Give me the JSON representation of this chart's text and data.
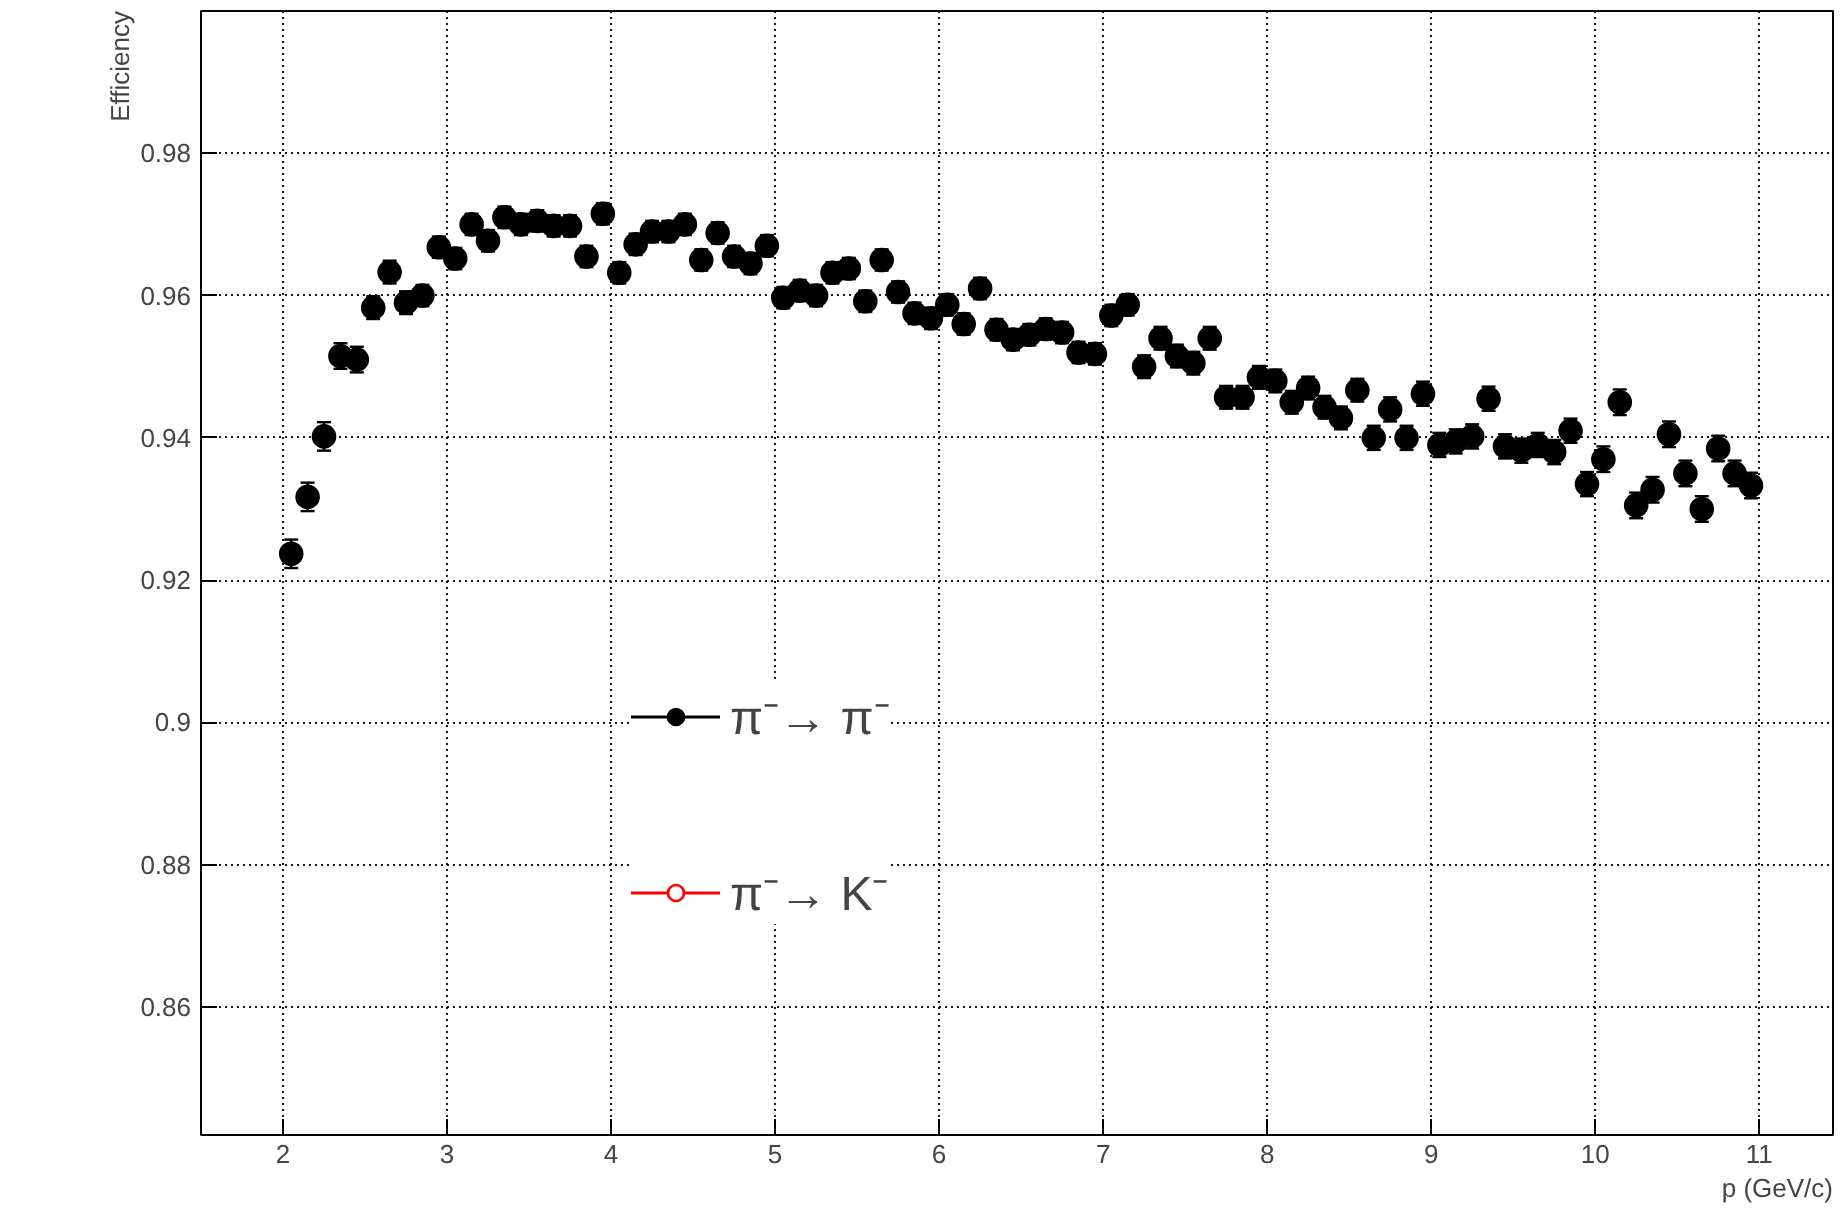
{
  "chart_data": {
    "type": "scatter",
    "xlabel": "p (GeV/c)",
    "ylabel": "Efficiency",
    "x": [
      2.05,
      2.15,
      2.25,
      2.35,
      2.45,
      2.55,
      2.65,
      2.75,
      2.85,
      2.95,
      3.05,
      3.15,
      3.25,
      3.35,
      3.45,
      3.55,
      3.65,
      3.75,
      3.85,
      3.95,
      4.05,
      4.15,
      4.25,
      4.35,
      4.45,
      4.55,
      4.65,
      4.75,
      4.85,
      4.95,
      5.05,
      5.15,
      5.25,
      5.35,
      5.45,
      5.55,
      5.65,
      5.75,
      5.85,
      5.95,
      6.05,
      6.15,
      6.25,
      6.35,
      6.45,
      6.55,
      6.65,
      6.75,
      6.85,
      6.95,
      7.05,
      7.15,
      7.25,
      7.35,
      7.45,
      7.55,
      7.65,
      7.75,
      7.85,
      7.95,
      8.05,
      8.15,
      8.25,
      8.35,
      8.45,
      8.55,
      8.65,
      8.75,
      8.85,
      8.95,
      9.05,
      9.15,
      9.25,
      9.35,
      9.45,
      9.55,
      9.65,
      9.75,
      9.85,
      9.95,
      10.05,
      10.15,
      10.25,
      10.35,
      10.45,
      10.55,
      10.65,
      10.75,
      10.85,
      10.95
    ],
    "series": [
      {
        "name": "π⁻→ π⁻",
        "color": "#000000",
        "marker": "circle",
        "values": [
          0.9237,
          0.9317,
          0.9402,
          0.9515,
          0.951,
          0.9583,
          0.9633,
          0.959,
          0.96,
          0.9668,
          0.9652,
          0.97,
          0.9677,
          0.971,
          0.97,
          0.9705,
          0.9698,
          0.9698,
          0.9655,
          0.9715,
          0.9632,
          0.9672,
          0.969,
          0.969,
          0.97,
          0.965,
          0.9688,
          0.9655,
          0.9645,
          0.967,
          0.9597,
          0.9607,
          0.96,
          0.9632,
          0.9638,
          0.9592,
          0.965,
          0.9605,
          0.9575,
          0.9568,
          0.9587,
          0.956,
          0.961,
          0.9552,
          0.9538,
          0.9545,
          0.9553,
          0.9548,
          0.952,
          0.9518,
          0.9572,
          0.9587,
          0.95,
          0.954,
          0.9515,
          0.9505,
          0.954,
          0.9457,
          0.9457,
          0.9485,
          0.948,
          0.945,
          0.947,
          0.9443,
          0.9428,
          0.9467,
          0.94,
          0.944,
          0.94,
          0.9462,
          0.939,
          0.9395,
          0.9402,
          0.9455,
          0.9388,
          0.9382,
          0.939,
          0.938,
          0.941,
          0.9335,
          0.937,
          0.945,
          0.9305,
          0.9327,
          0.9405,
          0.935,
          0.93,
          0.9385,
          0.935,
          0.9333
        ],
        "errors": [
          0.002,
          0.002,
          0.002,
          0.0018,
          0.0018,
          0.0016,
          0.0016,
          0.0016,
          0.0015,
          0.0015,
          0.0015,
          0.0015,
          0.0015,
          0.0015,
          0.0015,
          0.0015,
          0.0015,
          0.0015,
          0.0015,
          0.0015,
          0.0015,
          0.0015,
          0.0015,
          0.0015,
          0.0015,
          0.0015,
          0.0015,
          0.0015,
          0.0015,
          0.0015,
          0.0015,
          0.0015,
          0.0015,
          0.0015,
          0.0015,
          0.0015,
          0.0015,
          0.0015,
          0.0015,
          0.0015,
          0.0015,
          0.0015,
          0.0015,
          0.0015,
          0.0015,
          0.0015,
          0.0015,
          0.0015,
          0.0015,
          0.0015,
          0.0015,
          0.0015,
          0.0016,
          0.0016,
          0.0016,
          0.0016,
          0.0016,
          0.0016,
          0.0016,
          0.0016,
          0.0016,
          0.0016,
          0.0016,
          0.0016,
          0.0016,
          0.0016,
          0.0017,
          0.0017,
          0.0017,
          0.0017,
          0.0017,
          0.0017,
          0.0017,
          0.0017,
          0.0017,
          0.0017,
          0.0017,
          0.0017,
          0.0017,
          0.0017,
          0.0018,
          0.0018,
          0.0018,
          0.0018,
          0.0018,
          0.0018,
          0.0018,
          0.0018,
          0.0018,
          0.0018
        ]
      },
      {
        "name": "π⁻→ K⁻",
        "color": "#ff0000",
        "marker": "circle_open",
        "values": [
          null,
          null,
          null,
          null,
          null,
          null,
          null,
          null,
          null,
          null,
          null,
          null,
          null,
          null,
          null,
          null,
          null,
          null,
          null,
          null,
          null,
          null,
          null,
          null,
          null,
          null,
          null,
          null,
          null,
          null,
          null,
          null,
          null,
          null,
          null,
          null,
          null,
          null,
          null,
          null,
          null,
          null,
          null,
          null,
          null,
          null,
          null,
          null,
          null,
          null,
          null,
          null,
          null,
          null,
          null,
          null,
          null,
          null,
          null,
          null,
          null,
          null,
          null,
          null,
          null,
          null,
          null,
          null,
          null,
          null,
          null,
          null,
          null,
          null,
          null,
          null,
          null,
          null,
          null,
          null,
          null,
          null,
          null,
          null,
          null,
          null,
          null,
          null,
          null,
          null
        ]
      }
    ],
    "xlim": [
      1.5,
      11.45
    ],
    "ylim": [
      0.842,
      1.0
    ],
    "xticks": [
      2,
      3,
      4,
      5,
      6,
      7,
      8,
      9,
      10,
      11
    ],
    "yticks": [
      0.86,
      0.88,
      0.9,
      0.92,
      0.94,
      0.96,
      0.98
    ],
    "grid": true,
    "legend": "left"
  }
}
